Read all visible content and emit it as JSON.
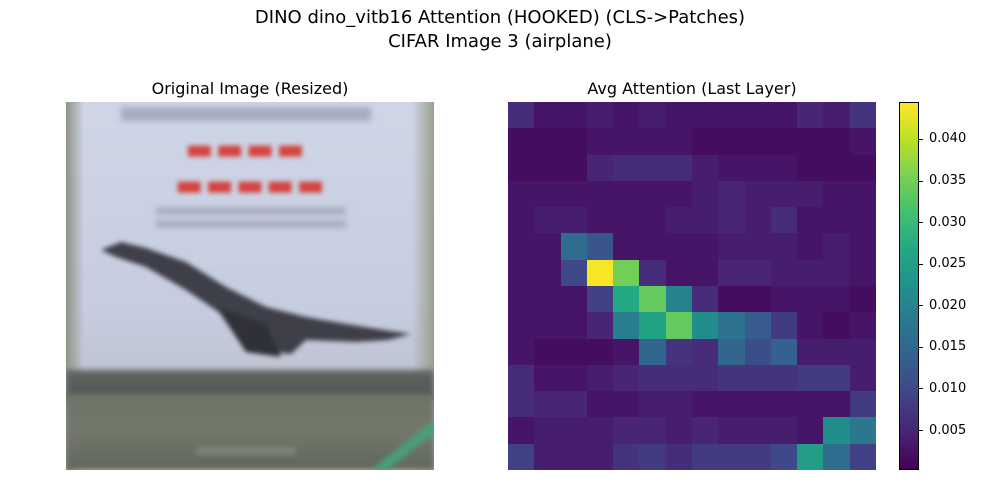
{
  "figure": {
    "title_line1": "DINO dino_vitb16 Attention (HOOKED) (CLS->Patches)",
    "title_line2": "CIFAR Image 3 (airplane)"
  },
  "left_panel": {
    "title": "Original Image (Resized)"
  },
  "right_panel": {
    "title": "Avg Attention (Last Layer)"
  },
  "colorscale": {
    "name": "viridis",
    "stops": [
      "#440154",
      "#482475",
      "#414487",
      "#355f8d",
      "#2a788e",
      "#21918c",
      "#22a884",
      "#44bf70",
      "#7ad151",
      "#bddf26",
      "#fde725"
    ]
  },
  "chart_data": {
    "type": "heatmap",
    "title": "Avg Attention (Last Layer)",
    "rows": 14,
    "cols": 14,
    "zlim": [
      0.0005,
      0.0445
    ],
    "colorbar_ticks": [
      0.005,
      0.01,
      0.015,
      0.02,
      0.025,
      0.03,
      0.035,
      0.04
    ],
    "colorbar_tick_labels": [
      "0.005",
      "0.010",
      "0.015",
      "0.020",
      "0.025",
      "0.030",
      "0.035",
      "0.040"
    ],
    "values": [
      [
        0.006,
        0.003,
        0.003,
        0.004,
        0.003,
        0.004,
        0.003,
        0.003,
        0.003,
        0.003,
        0.003,
        0.005,
        0.004,
        0.007
      ],
      [
        0.002,
        0.002,
        0.002,
        0.003,
        0.003,
        0.003,
        0.003,
        0.002,
        0.002,
        0.002,
        0.002,
        0.002,
        0.002,
        0.003
      ],
      [
        0.002,
        0.002,
        0.002,
        0.005,
        0.006,
        0.006,
        0.006,
        0.004,
        0.003,
        0.003,
        0.003,
        0.002,
        0.002,
        0.002
      ],
      [
        0.003,
        0.003,
        0.003,
        0.003,
        0.003,
        0.003,
        0.003,
        0.004,
        0.005,
        0.004,
        0.004,
        0.004,
        0.003,
        0.003
      ],
      [
        0.003,
        0.004,
        0.004,
        0.003,
        0.003,
        0.003,
        0.004,
        0.004,
        0.005,
        0.004,
        0.006,
        0.003,
        0.003,
        0.003
      ],
      [
        0.003,
        0.003,
        0.016,
        0.012,
        0.003,
        0.003,
        0.003,
        0.003,
        0.004,
        0.004,
        0.004,
        0.003,
        0.004,
        0.003
      ],
      [
        0.003,
        0.003,
        0.01,
        0.044,
        0.035,
        0.006,
        0.003,
        0.003,
        0.005,
        0.005,
        0.004,
        0.004,
        0.004,
        0.003
      ],
      [
        0.003,
        0.003,
        0.003,
        0.009,
        0.027,
        0.034,
        0.02,
        0.006,
        0.002,
        0.002,
        0.003,
        0.003,
        0.003,
        0.002
      ],
      [
        0.003,
        0.003,
        0.003,
        0.005,
        0.019,
        0.026,
        0.034,
        0.022,
        0.017,
        0.013,
        0.008,
        0.003,
        0.002,
        0.003
      ],
      [
        0.003,
        0.002,
        0.002,
        0.002,
        0.003,
        0.015,
        0.007,
        0.006,
        0.015,
        0.011,
        0.014,
        0.004,
        0.004,
        0.004
      ],
      [
        0.006,
        0.003,
        0.003,
        0.004,
        0.005,
        0.006,
        0.006,
        0.006,
        0.007,
        0.007,
        0.007,
        0.008,
        0.008,
        0.004
      ],
      [
        0.006,
        0.005,
        0.005,
        0.003,
        0.003,
        0.004,
        0.004,
        0.003,
        0.003,
        0.003,
        0.003,
        0.003,
        0.003,
        0.008
      ],
      [
        0.003,
        0.004,
        0.004,
        0.004,
        0.005,
        0.005,
        0.004,
        0.005,
        0.004,
        0.004,
        0.004,
        0.003,
        0.022,
        0.018
      ],
      [
        0.009,
        0.004,
        0.004,
        0.004,
        0.007,
        0.008,
        0.006,
        0.008,
        0.008,
        0.008,
        0.01,
        0.025,
        0.016,
        0.009
      ]
    ]
  }
}
